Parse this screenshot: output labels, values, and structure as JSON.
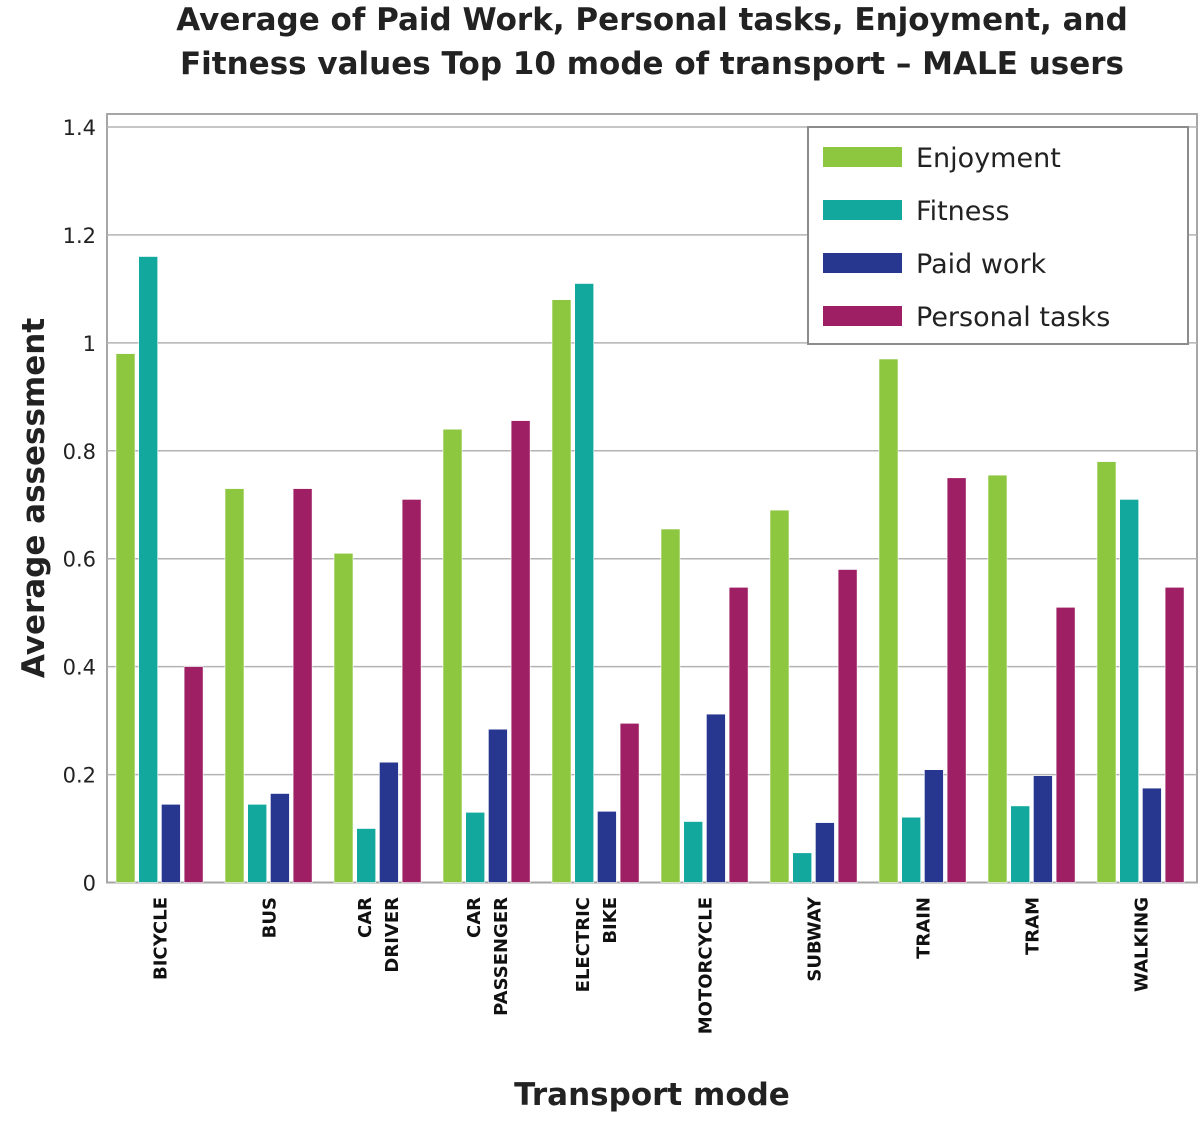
{
  "chart_data": {
    "type": "bar",
    "title": [
      "Average of Paid Work, Personal tasks, Enjoyment, and",
      "Fitness values Top 10 mode of transport – MALE users"
    ],
    "xlabel": "Transport mode",
    "ylabel": "Average assessment",
    "ylim": [
      0,
      1.4
    ],
    "yticks": [
      0,
      0.2,
      0.4,
      0.6,
      0.8,
      1,
      1.2,
      1.4
    ],
    "ytick_labels": [
      "0",
      "0.2",
      "0.4",
      "0.6",
      "0.8",
      "1",
      "1.2",
      "1.4"
    ],
    "grid": true,
    "legend_position": "top-right",
    "categories": [
      [
        "BICYCLE"
      ],
      [
        "BUS"
      ],
      [
        "CAR",
        "DRIVER"
      ],
      [
        "CAR",
        "PASSENGER"
      ],
      [
        "ELECTRIC",
        "BIKE"
      ],
      [
        "MOTORCYCLE"
      ],
      [
        "SUBWAY"
      ],
      [
        "TRAIN"
      ],
      [
        "TRAM"
      ],
      [
        "WALKING"
      ]
    ],
    "series": [
      {
        "name": "Enjoyment",
        "color": "#8dc63f",
        "values": [
          0.98,
          0.73,
          0.61,
          0.84,
          1.08,
          0.655,
          0.69,
          0.97,
          0.755,
          0.78
        ]
      },
      {
        "name": "Fitness",
        "color": "#12a89d",
        "values": [
          1.16,
          0.145,
          0.1,
          0.13,
          1.11,
          0.113,
          0.055,
          0.121,
          0.142,
          0.71
        ]
      },
      {
        "name": "Paid work",
        "color": "#27378f",
        "values": [
          0.145,
          0.165,
          0.223,
          0.284,
          0.132,
          0.312,
          0.111,
          0.209,
          0.198,
          0.175
        ]
      },
      {
        "name": "Personal tasks",
        "color": "#9e1f63",
        "values": [
          0.4,
          0.73,
          0.71,
          0.856,
          0.295,
          0.547,
          0.58,
          0.75,
          0.51,
          0.547
        ]
      }
    ]
  },
  "colors": {
    "gridline": "#b3b3b3",
    "axis": "#a6a6a6",
    "text": "#222222"
  }
}
